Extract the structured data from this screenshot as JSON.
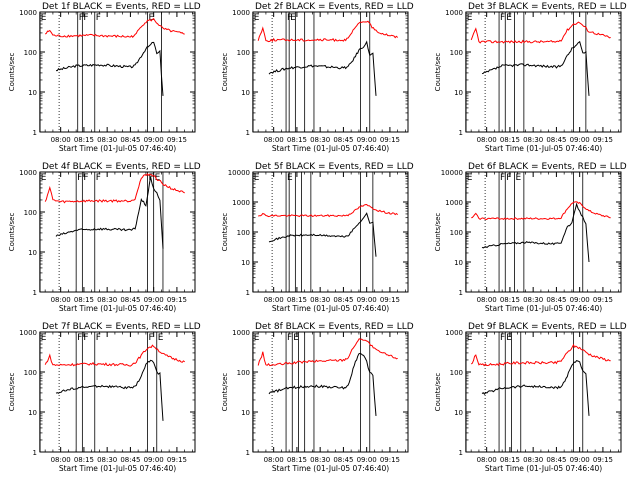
{
  "figure": {
    "start_time_label": "Start Time (01-Jul-05 07:46:40)",
    "ylabel": "Counts/sec",
    "x_ticks": [
      "08:00",
      "08:15",
      "08:30",
      "08:45",
      "09:00",
      "09:15"
    ],
    "y_ticks": [
      "1",
      "10",
      "100",
      "1000"
    ],
    "y_ticks_big": [
      "1",
      "10",
      "100",
      "1000",
      "10000"
    ],
    "colors": {
      "events": "#000000",
      "lld": "#ff0000"
    }
  },
  "chart_data": [
    {
      "type": "line",
      "title": "Det 1f BLACK = Events, RED = LLD",
      "xlabel": "Start Time (01-Jul-05 07:46:40)",
      "ylabel": "Counts/sec",
      "yscale": "log",
      "ylim": [
        1,
        1000
      ],
      "xlim": [
        "07:46:40",
        "09:26:40"
      ],
      "x_ticks": [
        "08:00",
        "08:15",
        "08:30",
        "08:45",
        "09:00",
        "09:15"
      ],
      "markers": [
        "E",
        "F",
        "F",
        "F",
        "E"
      ],
      "marker_times_min": [
        -13.5,
        11,
        14,
        22,
        56,
        65
      ],
      "series": [
        {
          "name": "BLACK = Events",
          "color": "#000000",
          "t_min": [
            -3,
            10,
            25,
            45,
            48,
            52,
            55,
            58,
            60,
            62,
            64,
            66
          ],
          "values": [
            35,
            45,
            48,
            42,
            45,
            80,
            120,
            150,
            180,
            90,
            100,
            8
          ]
        },
        {
          "name": "RED = LLD",
          "color": "#ff0000",
          "t_min": [
            -10,
            -7,
            -5,
            0,
            20,
            45,
            48,
            52,
            56,
            60,
            66,
            72,
            80
          ],
          "values": [
            280,
            350,
            260,
            250,
            260,
            240,
            260,
            450,
            600,
            650,
            380,
            330,
            280
          ]
        }
      ]
    },
    {
      "type": "line",
      "title": "Det 2f BLACK = Events, RED = LLD",
      "xlabel": "Start Time (01-Jul-05 07:46:40)",
      "ylabel": "Counts/sec",
      "yscale": "log",
      "ylim": [
        1,
        1000
      ],
      "xlim": [
        "07:46:40",
        "09:26:40"
      ],
      "x_ticks": [
        "08:00",
        "08:15",
        "08:30",
        "08:45",
        "09:00",
        "09:15"
      ],
      "markers": [
        "E",
        "F",
        "E"
      ],
      "marker_times_min": [
        -13.5,
        8,
        10,
        14,
        20,
        26,
        56,
        62
      ],
      "series": [
        {
          "name": "BLACK = Events",
          "color": "#000000",
          "t_min": [
            -3,
            10,
            25,
            45,
            48,
            52,
            55,
            58,
            60,
            62,
            64,
            66
          ],
          "values": [
            30,
            40,
            45,
            40,
            42,
            70,
            110,
            140,
            170,
            85,
            90,
            8
          ]
        },
        {
          "name": "RED = LLD",
          "color": "#ff0000",
          "t_min": [
            -10,
            -7,
            -5,
            0,
            20,
            45,
            48,
            52,
            56,
            60,
            66,
            72,
            80
          ],
          "values": [
            200,
            400,
            190,
            200,
            200,
            200,
            210,
            380,
            550,
            600,
            330,
            280,
            230
          ]
        }
      ]
    },
    {
      "type": "line",
      "title": "Det 3f BLACK = Events, RED = LLD",
      "xlabel": "Start Time (01-Jul-05 07:46:40)",
      "ylabel": "Counts/sec",
      "yscale": "log",
      "ylim": [
        1,
        1000
      ],
      "xlim": [
        "07:46:40",
        "09:26:40"
      ],
      "x_ticks": [
        "08:00",
        "08:15",
        "08:30",
        "08:45",
        "09:00",
        "09:15"
      ],
      "markers": [
        "E",
        "F",
        "E"
      ],
      "marker_times_min": [
        -13.5,
        8,
        12,
        18,
        24,
        56,
        64
      ],
      "series": [
        {
          "name": "BLACK = Events",
          "color": "#000000",
          "t_min": [
            -3,
            10,
            25,
            45,
            48,
            52,
            55,
            58,
            60,
            62,
            64,
            66
          ],
          "values": [
            28,
            45,
            48,
            42,
            45,
            80,
            120,
            150,
            180,
            90,
            100,
            8
          ]
        },
        {
          "name": "RED = LLD",
          "color": "#ff0000",
          "t_min": [
            -10,
            -7,
            -5,
            0,
            20,
            45,
            48,
            52,
            56,
            60,
            66,
            72,
            80
          ],
          "values": [
            190,
            380,
            180,
            180,
            180,
            180,
            200,
            350,
            500,
            550,
            330,
            280,
            230
          ]
        }
      ]
    },
    {
      "type": "line",
      "title": "Det 4f BLACK = Events, RED = LLD",
      "xlabel": "Start Time (01-Jul-05 07:46:40)",
      "ylabel": "Counts/sec",
      "yscale": "log",
      "ylim": [
        1,
        1000
      ],
      "xlim": [
        "07:46:40",
        "09:26:40"
      ],
      "x_ticks": [
        "08:00",
        "08:15",
        "08:30",
        "08:45",
        "09:00",
        "09:15"
      ],
      "markers": [
        "E",
        "F",
        "F",
        "F",
        "F",
        "E"
      ],
      "marker_times_min": [
        -13.5,
        10,
        14,
        22,
        56,
        60,
        66
      ],
      "series": [
        {
          "name": "BLACK = Events",
          "color": "#000000",
          "t_min": [
            -3,
            10,
            25,
            45,
            48,
            52,
            55,
            58,
            60,
            62,
            64,
            66
          ],
          "values": [
            25,
            35,
            38,
            35,
            38,
            200,
            150,
            700,
            400,
            300,
            200,
            12
          ]
        },
        {
          "name": "RED = LLD",
          "color": "#ff0000",
          "t_min": [
            -10,
            -7,
            -5,
            0,
            20,
            45,
            48,
            52,
            56,
            60,
            66,
            72,
            80
          ],
          "values": [
            180,
            400,
            200,
            180,
            190,
            190,
            220,
            700,
            900,
            800,
            500,
            380,
            300
          ]
        }
      ]
    },
    {
      "type": "line",
      "title": "Det 5f BLACK = Events, RED = LLD",
      "xlabel": "Start Time (01-Jul-05 07:46:40)",
      "ylabel": "Counts/sec",
      "yscale": "log",
      "ylim": [
        1,
        10000
      ],
      "xlim": [
        "07:46:40",
        "09:26:40"
      ],
      "x_ticks": [
        "08:00",
        "08:15",
        "08:30",
        "08:45",
        "09:00",
        "09:15"
      ],
      "markers": [
        "E",
        "E"
      ],
      "marker_times_min": [
        -13.5,
        8,
        10,
        14,
        18,
        24,
        56,
        64
      ],
      "series": [
        {
          "name": "BLACK = Events",
          "color": "#000000",
          "t_min": [
            -3,
            10,
            25,
            45,
            48,
            52,
            55,
            58,
            60,
            62,
            64,
            66
          ],
          "values": [
            50,
            75,
            80,
            70,
            75,
            130,
            200,
            300,
            400,
            200,
            220,
            15
          ]
        },
        {
          "name": "RED = LLD",
          "color": "#ff0000",
          "t_min": [
            -10,
            -7,
            -5,
            0,
            20,
            45,
            48,
            52,
            56,
            60,
            66,
            72,
            80
          ],
          "values": [
            350,
            400,
            350,
            350,
            350,
            350,
            370,
            500,
            700,
            800,
            550,
            450,
            380
          ]
        }
      ]
    },
    {
      "type": "line",
      "title": "Det 6f BLACK = Events, RED = LLD",
      "xlabel": "Start Time (01-Jul-05 07:46:40)",
      "ylabel": "Counts/sec",
      "yscale": "log",
      "ylim": [
        1,
        10000
      ],
      "xlim": [
        "07:46:40",
        "09:26:40"
      ],
      "x_ticks": [
        "08:00",
        "08:15",
        "08:30",
        "08:45",
        "09:00",
        "09:15"
      ],
      "markers": [
        "E",
        "F",
        "F",
        "E"
      ],
      "marker_times_min": [
        -13.5,
        8,
        12,
        18,
        24,
        56,
        62
      ],
      "series": [
        {
          "name": "BLACK = Events",
          "color": "#000000",
          "t_min": [
            -3,
            10,
            25,
            45,
            48,
            52,
            55,
            58,
            60,
            62,
            64,
            66
          ],
          "values": [
            30,
            40,
            45,
            40,
            45,
            150,
            200,
            800,
            500,
            300,
            200,
            10
          ]
        },
        {
          "name": "RED = LLD",
          "color": "#ff0000",
          "t_min": [
            -10,
            -7,
            -5,
            0,
            20,
            45,
            48,
            52,
            56,
            60,
            66,
            72,
            80
          ],
          "values": [
            280,
            400,
            280,
            280,
            280,
            280,
            300,
            600,
            1000,
            900,
            500,
            380,
            300
          ]
        }
      ]
    },
    {
      "type": "line",
      "title": "Det 7f BLACK = Events, RED = LLD",
      "xlabel": "Start Time (01-Jul-05 07:46:40)",
      "ylabel": "Counts/sec",
      "yscale": "log",
      "ylim": [
        1,
        1000
      ],
      "xlim": [
        "07:46:40",
        "09:26:40"
      ],
      "x_ticks": [
        "08:00",
        "08:15",
        "08:30",
        "08:45",
        "09:00",
        "09:15"
      ],
      "markers": [
        "E",
        "F",
        "F",
        "F",
        "F",
        "E"
      ],
      "marker_times_min": [
        -13.5,
        10,
        14,
        22,
        56,
        62
      ],
      "series": [
        {
          "name": "BLACK = Events",
          "color": "#000000",
          "t_min": [
            -3,
            10,
            25,
            45,
            48,
            52,
            55,
            58,
            60,
            62,
            64,
            66
          ],
          "values": [
            30,
            40,
            45,
            40,
            42,
            80,
            150,
            200,
            180,
            100,
            90,
            6
          ]
        },
        {
          "name": "RED = LLD",
          "color": "#ff0000",
          "t_min": [
            -10,
            -7,
            -5,
            0,
            20,
            45,
            48,
            52,
            56,
            60,
            66,
            72,
            80
          ],
          "values": [
            150,
            250,
            150,
            150,
            160,
            150,
            170,
            260,
            400,
            450,
            280,
            220,
            180
          ]
        }
      ]
    },
    {
      "type": "line",
      "title": "Det 8f BLACK = Events, RED = LLD",
      "xlabel": "Start Time (01-Jul-05 07:46:40)",
      "ylabel": "Counts/sec",
      "yscale": "log",
      "ylim": [
        1,
        1000
      ],
      "xlim": [
        "07:46:40",
        "09:26:40"
      ],
      "x_ticks": [
        "08:00",
        "08:15",
        "08:30",
        "08:45",
        "09:00",
        "09:15"
      ],
      "markers": [
        "E",
        "F",
        "E"
      ],
      "marker_times_min": [
        -13.5,
        8,
        12,
        16,
        20,
        26,
        56,
        62
      ],
      "series": [
        {
          "name": "BLACK = Events",
          "color": "#000000",
          "t_min": [
            -3,
            10,
            25,
            45,
            48,
            52,
            55,
            58,
            60,
            62,
            64,
            66
          ],
          "values": [
            30,
            40,
            45,
            40,
            45,
            150,
            300,
            250,
            180,
            100,
            80,
            8
          ]
        },
        {
          "name": "RED = LLD",
          "color": "#ff0000",
          "t_min": [
            -10,
            -7,
            -5,
            0,
            20,
            45,
            48,
            52,
            56,
            60,
            66,
            72,
            80
          ],
          "values": [
            150,
            300,
            150,
            150,
            180,
            200,
            230,
            450,
            700,
            600,
            350,
            280,
            220
          ]
        }
      ]
    },
    {
      "type": "line",
      "title": "Det 9f BLACK = Events, RED = LLD",
      "xlabel": "Start Time (01-Jul-05 07:46:40)",
      "ylabel": "Counts/sec",
      "yscale": "log",
      "ylim": [
        1,
        1000
      ],
      "xlim": [
        "07:46:40",
        "09:26:40"
      ],
      "x_ticks": [
        "08:00",
        "08:15",
        "08:30",
        "08:45",
        "09:00",
        "09:15"
      ],
      "markers": [
        "E",
        "F",
        "E"
      ],
      "marker_times_min": [
        -13.5,
        8,
        12,
        16,
        22,
        56,
        62
      ],
      "series": [
        {
          "name": "BLACK = Events",
          "color": "#000000",
          "t_min": [
            -3,
            10,
            25,
            45,
            48,
            52,
            55,
            58,
            60,
            62,
            64,
            66
          ],
          "values": [
            28,
            40,
            45,
            40,
            42,
            80,
            150,
            200,
            180,
            100,
            90,
            8
          ]
        },
        {
          "name": "RED = LLD",
          "color": "#ff0000",
          "t_min": [
            -10,
            -7,
            -5,
            0,
            20,
            45,
            48,
            52,
            56,
            60,
            66,
            72,
            80
          ],
          "values": [
            150,
            280,
            150,
            150,
            170,
            170,
            190,
            300,
            450,
            400,
            280,
            230,
            190
          ]
        }
      ]
    }
  ]
}
